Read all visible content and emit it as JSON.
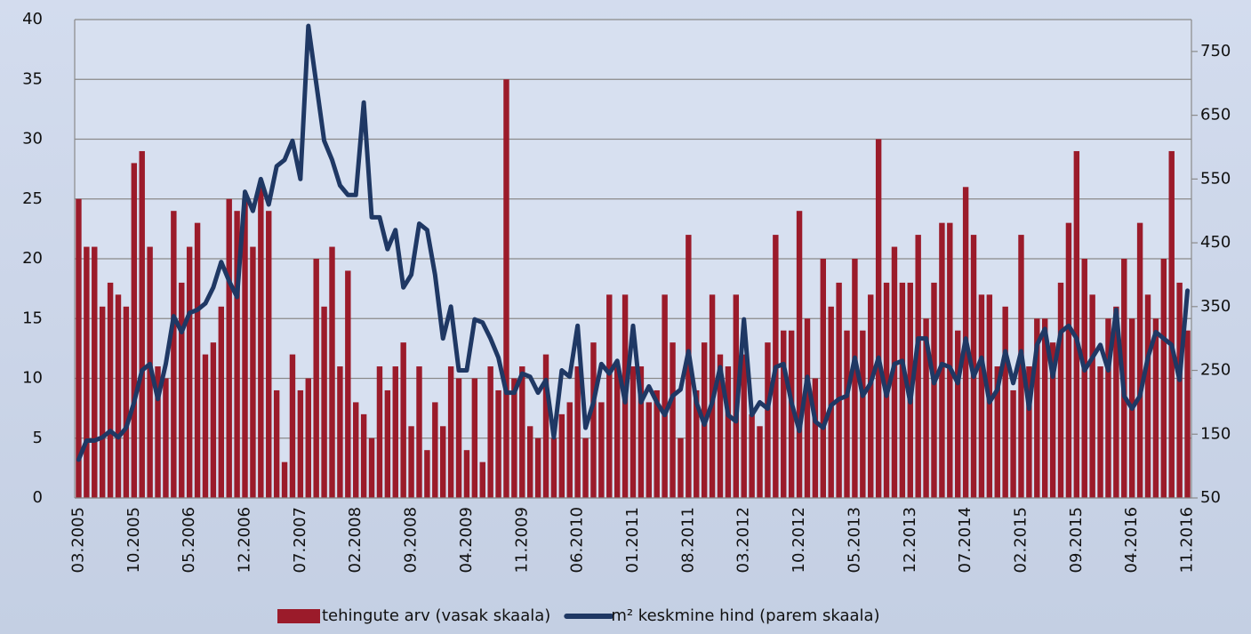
{
  "chart_data": {
    "type": "bar_line",
    "categories": [
      "03.2005",
      null,
      null,
      null,
      null,
      null,
      null,
      "10.2005",
      null,
      null,
      null,
      null,
      null,
      null,
      "05.2006",
      null,
      null,
      null,
      null,
      null,
      null,
      "12.2006",
      null,
      null,
      null,
      null,
      null,
      null,
      "07.2007",
      null,
      null,
      null,
      null,
      null,
      null,
      "02.2008",
      null,
      null,
      null,
      null,
      null,
      null,
      "09.2008",
      null,
      null,
      null,
      null,
      null,
      null,
      "04.2009",
      null,
      null,
      null,
      null,
      null,
      null,
      "11.2009",
      null,
      null,
      null,
      null,
      null,
      null,
      "06.2010",
      null,
      null,
      null,
      null,
      null,
      null,
      "01.2011",
      null,
      null,
      null,
      null,
      null,
      null,
      "08.2011",
      null,
      null,
      null,
      null,
      null,
      null,
      "03.2012",
      null,
      null,
      null,
      null,
      null,
      null,
      "10.2012",
      null,
      null,
      null,
      null,
      null,
      null,
      "05.2013",
      null,
      null,
      null,
      null,
      null,
      null,
      "12.2013",
      null,
      null,
      null,
      null,
      null,
      null,
      "07.2014",
      null,
      null,
      null,
      null,
      null,
      null,
      "02.2015",
      null,
      null,
      null,
      null,
      null,
      null,
      "09.2015",
      null,
      null,
      null,
      null,
      null,
      null,
      "04.2016",
      null,
      null,
      null,
      null,
      null,
      null,
      "11.2016"
    ],
    "series": [
      {
        "name": "tehingute arv (vasak skaala)",
        "type": "bar",
        "color": "#9b1b2a",
        "values": [
          25,
          21,
          21,
          16,
          18,
          17,
          16,
          28,
          29,
          21,
          11,
          10,
          24,
          18,
          21,
          23,
          12,
          13,
          16,
          25,
          24,
          25,
          21,
          26,
          24,
          9,
          3,
          12,
          9,
          10,
          20,
          16,
          21,
          11,
          19,
          8,
          7,
          5,
          11,
          9,
          11,
          13,
          6,
          11,
          4,
          8,
          6,
          11,
          10,
          4,
          10,
          3,
          11,
          9,
          35,
          10,
          11,
          6,
          5,
          12,
          5,
          7,
          8,
          11,
          5,
          13,
          8,
          17,
          11,
          17,
          11,
          11,
          8,
          9,
          17,
          13,
          5,
          22,
          9,
          13,
          17,
          12,
          11,
          17,
          12,
          7,
          6,
          13,
          22,
          14,
          14,
          24,
          15,
          10,
          20,
          16,
          18,
          14,
          20,
          14,
          17,
          30,
          18,
          21,
          18,
          18,
          22,
          15,
          18,
          23,
          23,
          14,
          26,
          22,
          17,
          17,
          11,
          16,
          9,
          22,
          11,
          15,
          15,
          13,
          18,
          23,
          29,
          20,
          17,
          11,
          15,
          16,
          20,
          15,
          23,
          17,
          15,
          20,
          29,
          18,
          14
        ]
      },
      {
        "name": "m² keskmine hind (parem skaala)",
        "type": "line",
        "axis": "y2",
        "color": "#1f3864",
        "values": [
          110,
          140,
          140,
          145,
          155,
          145,
          160,
          200,
          250,
          260,
          205,
          260,
          335,
          310,
          340,
          345,
          355,
          380,
          420,
          390,
          365,
          530,
          500,
          550,
          510,
          570,
          580,
          610,
          550,
          790,
          700,
          610,
          580,
          540,
          525,
          525,
          670,
          490,
          490,
          440,
          470,
          380,
          400,
          480,
          470,
          400,
          300,
          350,
          250,
          250,
          330,
          325,
          300,
          270,
          215,
          215,
          245,
          240,
          215,
          235,
          145,
          250,
          240,
          320,
          160,
          200,
          260,
          245,
          265,
          200,
          320,
          200,
          225,
          200,
          180,
          210,
          220,
          280,
          200,
          165,
          200,
          255,
          180,
          170,
          330,
          180,
          200,
          190,
          255,
          260,
          200,
          155,
          240,
          170,
          160,
          195,
          205,
          210,
          270,
          210,
          230,
          270,
          210,
          260,
          265,
          200,
          300,
          300,
          230,
          260,
          255,
          230,
          300,
          240,
          270,
          200,
          220,
          280,
          230,
          280,
          190,
          290,
          315,
          240,
          310,
          320,
          300,
          250,
          270,
          290,
          250,
          345,
          210,
          190,
          210,
          270,
          310,
          300,
          290,
          235,
          375
        ]
      }
    ],
    "ylim": [
      0,
      40
    ],
    "yticks": [
      0,
      5,
      10,
      15,
      20,
      25,
      30,
      35,
      40
    ],
    "y2lim": [
      50,
      800
    ],
    "y2ticks": [
      50,
      150,
      250,
      350,
      450,
      550,
      650,
      750
    ],
    "grid": true,
    "legend": "bottom"
  }
}
